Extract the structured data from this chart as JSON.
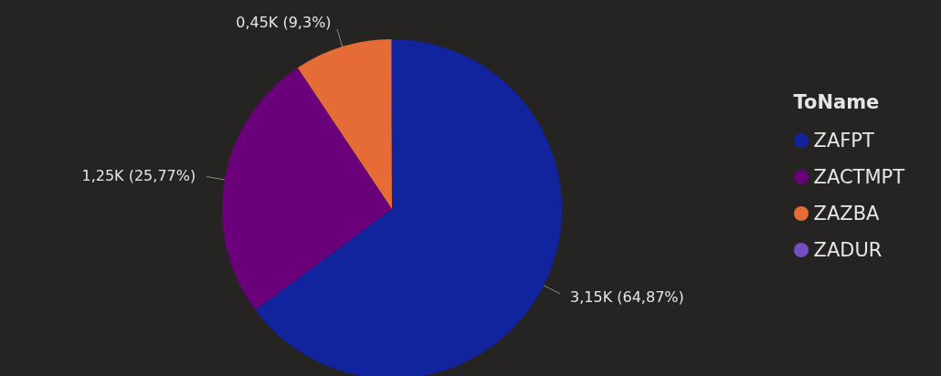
{
  "chart_data": {
    "type": "pie",
    "legend_title": "ToName",
    "legend": "right",
    "categories": [
      "ZAFPT",
      "ZACTMPT",
      "ZAZBA",
      "ZADUR"
    ],
    "values": [
      64.87,
      25.77,
      9.3,
      0.06
    ],
    "value_labels": [
      "3,15K (64,87%)",
      "1,25K (25,77%)",
      "0,45K (9,3%)",
      null
    ],
    "colors": [
      "#12239e",
      "#6b007b",
      "#e66c37",
      "#744ec2"
    ]
  }
}
